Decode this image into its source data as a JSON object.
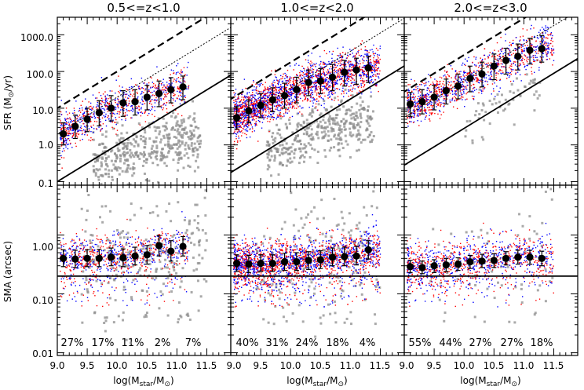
{
  "chart_data": {
    "type": "scatter",
    "layout": "3 columns x 2 rows",
    "columns": [
      {
        "title": "0.5<=z<1.0",
        "sfr_median": [
          {
            "x": 9.1,
            "y": 2.0,
            "lo": 1.0,
            "hi": 4.0
          },
          {
            "x": 9.3,
            "y": 3.2,
            "lo": 1.5,
            "hi": 6.5
          },
          {
            "x": 9.5,
            "y": 5.0,
            "lo": 2.3,
            "hi": 10.0
          },
          {
            "x": 9.7,
            "y": 7.5,
            "lo": 3.3,
            "hi": 16.0
          },
          {
            "x": 9.9,
            "y": 10.0,
            "lo": 4.5,
            "hi": 22.0
          },
          {
            "x": 10.1,
            "y": 14.0,
            "lo": 6.0,
            "hi": 30.0
          },
          {
            "x": 10.3,
            "y": 15.0,
            "lo": 6.5,
            "hi": 32.0
          },
          {
            "x": 10.5,
            "y": 20.0,
            "lo": 9.0,
            "hi": 42.0
          },
          {
            "x": 10.7,
            "y": 25.0,
            "lo": 11.0,
            "hi": 55.0
          },
          {
            "x": 10.9,
            "y": 32.0,
            "lo": 14.0,
            "hi": 68.0
          },
          {
            "x": 11.1,
            "y": 38.0,
            "lo": 17.0,
            "hi": 75.0
          }
        ],
        "sma_median": [
          {
            "x": 9.1,
            "y": 0.4,
            "lo": 0.29,
            "hi": 0.56
          },
          {
            "x": 9.3,
            "y": 0.39,
            "lo": 0.28,
            "hi": 0.55
          },
          {
            "x": 9.5,
            "y": 0.4,
            "lo": 0.29,
            "hi": 0.56
          },
          {
            "x": 9.7,
            "y": 0.4,
            "lo": 0.29,
            "hi": 0.57
          },
          {
            "x": 9.9,
            "y": 0.42,
            "lo": 0.3,
            "hi": 0.6
          },
          {
            "x": 10.1,
            "y": 0.41,
            "lo": 0.29,
            "hi": 0.58
          },
          {
            "x": 10.3,
            "y": 0.44,
            "lo": 0.31,
            "hi": 0.62
          },
          {
            "x": 10.5,
            "y": 0.46,
            "lo": 0.32,
            "hi": 0.66
          },
          {
            "x": 10.7,
            "y": 0.66,
            "lo": 0.44,
            "hi": 0.98
          },
          {
            "x": 10.9,
            "y": 0.53,
            "lo": 0.36,
            "hi": 0.8
          },
          {
            "x": 11.1,
            "y": 0.64,
            "lo": 0.44,
            "hi": 0.94
          }
        ],
        "fractions": [
          "27%",
          "17%",
          "11%",
          "2%",
          "7%"
        ]
      },
      {
        "title": "1.0<=z<2.0",
        "sfr_median": [
          {
            "x": 9.1,
            "y": 5.5,
            "lo": 2.7,
            "hi": 11.0
          },
          {
            "x": 9.3,
            "y": 8.5,
            "lo": 4.0,
            "hi": 17.0
          },
          {
            "x": 9.5,
            "y": 12.0,
            "lo": 5.5,
            "hi": 25.0
          },
          {
            "x": 9.7,
            "y": 17.0,
            "lo": 8.0,
            "hi": 36.0
          },
          {
            "x": 9.9,
            "y": 22.0,
            "lo": 10.0,
            "hi": 48.0
          },
          {
            "x": 10.1,
            "y": 32.0,
            "lo": 14.0,
            "hi": 70.0
          },
          {
            "x": 10.3,
            "y": 50.0,
            "lo": 22.0,
            "hi": 110.0
          },
          {
            "x": 10.5,
            "y": 55.0,
            "lo": 25.0,
            "hi": 120.0
          },
          {
            "x": 10.7,
            "y": 70.0,
            "lo": 30.0,
            "hi": 155.0
          },
          {
            "x": 10.9,
            "y": 95.0,
            "lo": 40.0,
            "hi": 200.0
          },
          {
            "x": 11.1,
            "y": 110.0,
            "lo": 45.0,
            "hi": 230.0
          },
          {
            "x": 11.3,
            "y": 125.0,
            "lo": 50.0,
            "hi": 260.0
          }
        ],
        "sma_median": [
          {
            "x": 9.1,
            "y": 0.33,
            "lo": 0.24,
            "hi": 0.46
          },
          {
            "x": 9.3,
            "y": 0.32,
            "lo": 0.23,
            "hi": 0.45
          },
          {
            "x": 9.5,
            "y": 0.33,
            "lo": 0.24,
            "hi": 0.46
          },
          {
            "x": 9.7,
            "y": 0.33,
            "lo": 0.24,
            "hi": 0.46
          },
          {
            "x": 9.9,
            "y": 0.35,
            "lo": 0.25,
            "hi": 0.49
          },
          {
            "x": 10.1,
            "y": 0.35,
            "lo": 0.25,
            "hi": 0.5
          },
          {
            "x": 10.3,
            "y": 0.37,
            "lo": 0.26,
            "hi": 0.52
          },
          {
            "x": 10.5,
            "y": 0.38,
            "lo": 0.27,
            "hi": 0.54
          },
          {
            "x": 10.7,
            "y": 0.42,
            "lo": 0.3,
            "hi": 0.6
          },
          {
            "x": 10.9,
            "y": 0.43,
            "lo": 0.3,
            "hi": 0.62
          },
          {
            "x": 11.1,
            "y": 0.44,
            "lo": 0.31,
            "hi": 0.64
          },
          {
            "x": 11.3,
            "y": 0.56,
            "lo": 0.39,
            "hi": 0.8
          }
        ],
        "fractions": [
          "40%",
          "31%",
          "24%",
          "18%",
          "4%"
        ]
      },
      {
        "title": "2.0<=z<3.0",
        "sfr_median": [
          {
            "x": 9.1,
            "y": 13.0,
            "lo": 6.0,
            "hi": 27.0
          },
          {
            "x": 9.3,
            "y": 15.0,
            "lo": 7.0,
            "hi": 32.0
          },
          {
            "x": 9.5,
            "y": 20.0,
            "lo": 9.0,
            "hi": 42.0
          },
          {
            "x": 9.7,
            "y": 30.0,
            "lo": 13.0,
            "hi": 62.0
          },
          {
            "x": 9.9,
            "y": 40.0,
            "lo": 18.0,
            "hi": 85.0
          },
          {
            "x": 10.1,
            "y": 65.0,
            "lo": 28.0,
            "hi": 140.0
          },
          {
            "x": 10.3,
            "y": 85.0,
            "lo": 38.0,
            "hi": 180.0
          },
          {
            "x": 10.5,
            "y": 140.0,
            "lo": 60.0,
            "hi": 300.0
          },
          {
            "x": 10.7,
            "y": 200.0,
            "lo": 85.0,
            "hi": 430.0
          },
          {
            "x": 10.9,
            "y": 260.0,
            "lo": 110.0,
            "hi": 560.0
          },
          {
            "x": 11.1,
            "y": 380.0,
            "lo": 160.0,
            "hi": 800.0
          },
          {
            "x": 11.3,
            "y": 420.0,
            "lo": 180.0,
            "hi": 950.0
          }
        ],
        "sma_median": [
          {
            "x": 9.1,
            "y": 0.29,
            "lo": 0.23,
            "hi": 0.37
          },
          {
            "x": 9.3,
            "y": 0.28,
            "lo": 0.22,
            "hi": 0.36
          },
          {
            "x": 9.5,
            "y": 0.3,
            "lo": 0.23,
            "hi": 0.38
          },
          {
            "x": 9.7,
            "y": 0.31,
            "lo": 0.24,
            "hi": 0.4
          },
          {
            "x": 9.9,
            "y": 0.32,
            "lo": 0.25,
            "hi": 0.41
          },
          {
            "x": 10.1,
            "y": 0.35,
            "lo": 0.27,
            "hi": 0.45
          },
          {
            "x": 10.3,
            "y": 0.36,
            "lo": 0.28,
            "hi": 0.47
          },
          {
            "x": 10.5,
            "y": 0.37,
            "lo": 0.28,
            "hi": 0.48
          },
          {
            "x": 10.7,
            "y": 0.4,
            "lo": 0.31,
            "hi": 0.52
          },
          {
            "x": 10.9,
            "y": 0.42,
            "lo": 0.32,
            "hi": 0.55
          },
          {
            "x": 11.1,
            "y": 0.42,
            "lo": 0.32,
            "hi": 0.55
          },
          {
            "x": 11.3,
            "y": 0.4,
            "lo": 0.3,
            "hi": 0.53
          }
        ],
        "fractions": [
          "55%",
          "44%",
          "27%",
          "27%",
          "18%"
        ]
      }
    ],
    "x_axis": {
      "range": [
        9.0,
        11.9
      ],
      "ticks": [
        9.0,
        9.5,
        10.0,
        10.5,
        11.0,
        11.5
      ],
      "tick_labels": [
        "9.0",
        "9.5",
        "10.0",
        "10.5",
        "11.0",
        "11.5"
      ],
      "label_main": "log(M",
      "label_sub1": "star",
      "label_mid": "/M",
      "label_sub2": "⊙",
      "label_end": ")"
    },
    "sfr_axis": {
      "range": [
        0.08,
        3000
      ],
      "scale": "log",
      "ticks": [
        0.1,
        1,
        10,
        100,
        1000
      ],
      "tick_labels": [
        "0.1",
        "1.0",
        "10.0",
        "100.0",
        "1000.0"
      ],
      "label_main": "SFR (M",
      "label_sub": "⊙",
      "label_end": "/yr)"
    },
    "sma_axis": {
      "range": [
        0.009,
        7
      ],
      "scale": "log",
      "ticks": [
        0.01,
        0.1,
        1.0
      ],
      "tick_labels": [
        "0.01",
        "0.10",
        "1.00"
      ],
      "label": "SMA (arcsec)",
      "threshold": 0.2
    },
    "series_colors": {
      "red": "#ff0000",
      "blue": "#0000ff",
      "gray": "#8c8c8c",
      "median": "#000000"
    }
  }
}
